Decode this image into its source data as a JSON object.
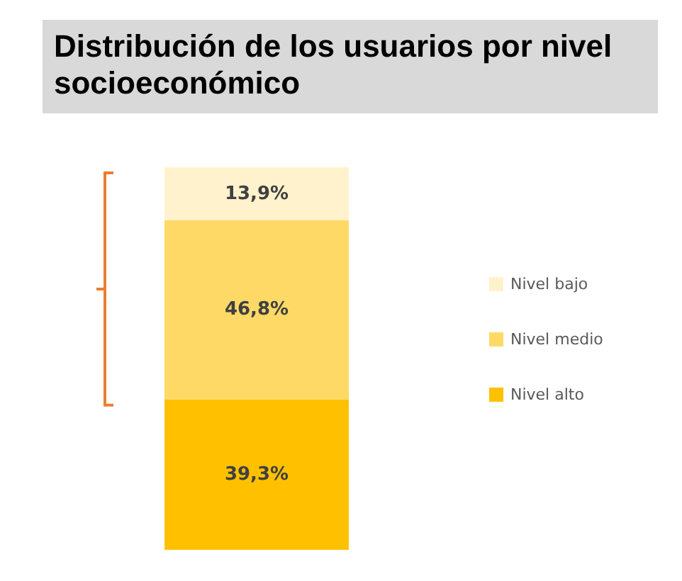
{
  "chart_data": {
    "type": "bar",
    "title": "Distribución de los usuarios por nivel socioeconómico",
    "categories": [
      null
    ],
    "stacked": true,
    "legend": "right",
    "series": [
      {
        "name": "Nivel alto",
        "color": "#ffc000",
        "values": [
          39.3
        ],
        "value_labels": [
          "39,3%"
        ]
      },
      {
        "name": "Nivel medio",
        "color": "#ffd966",
        "values": [
          46.8
        ],
        "value_labels": [
          "46,8%"
        ]
      },
      {
        "name": "Nivel bajo",
        "color": "#fff2cc",
        "values": [
          13.9
        ],
        "value_labels": [
          "13,9%"
        ]
      }
    ]
  }
}
